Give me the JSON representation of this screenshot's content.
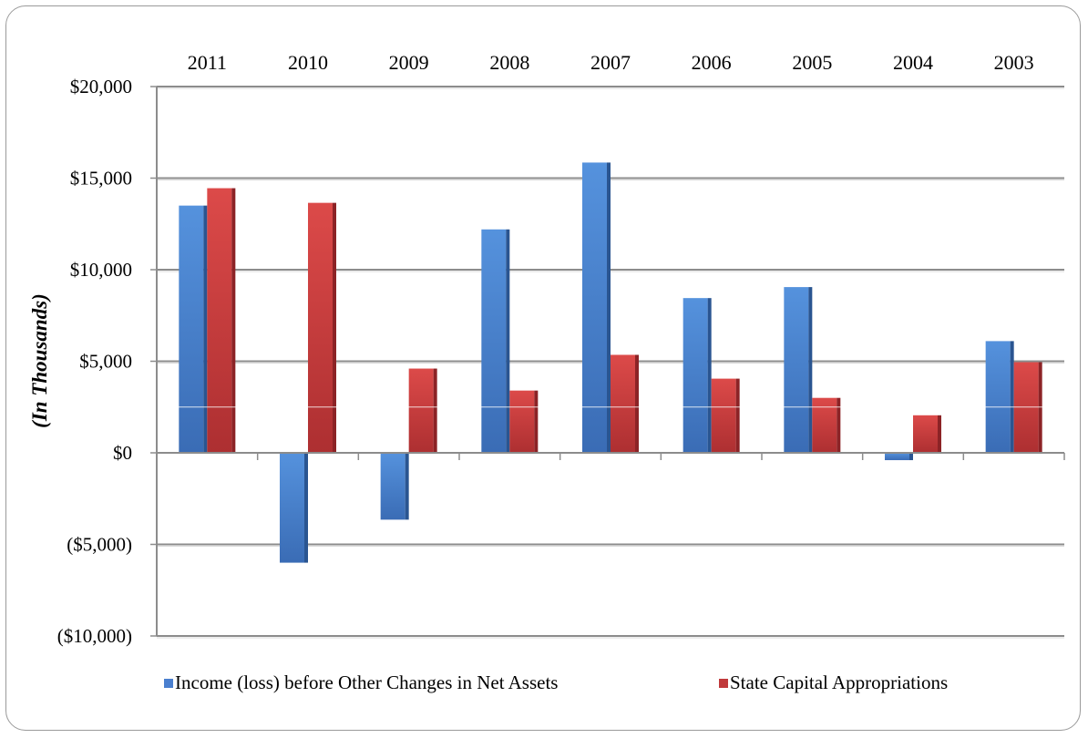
{
  "chart_data": {
    "type": "bar",
    "categories": [
      "2011",
      "2010",
      "2009",
      "2008",
      "2007",
      "2006",
      "2005",
      "2004",
      "2003"
    ],
    "series": [
      {
        "name": "Income (loss) before Other Changes in Net Assets",
        "values": [
          13500,
          -6000,
          -3650,
          12200,
          15850,
          8450,
          9050,
          -400,
          6100
        ],
        "color": "#4a7fcf"
      },
      {
        "name": "State Capital Appropriations",
        "values": [
          14450,
          13650,
          4600,
          3400,
          5350,
          4050,
          3000,
          2050,
          4950
        ],
        "color": "#c0393b"
      }
    ],
    "ylabel": "(In Thousands)",
    "ylim": [
      -10000,
      20000
    ],
    "yticks": [
      20000,
      15000,
      10000,
      5000,
      0,
      -5000,
      -10000
    ],
    "ytick_labels": [
      "$20,000",
      "$15,000",
      "$10,000",
      "$5,000",
      "$0",
      "($5,000)",
      "($10,000)"
    ],
    "x_axis_position": "top",
    "grid": true,
    "legend_position": "bottom"
  }
}
